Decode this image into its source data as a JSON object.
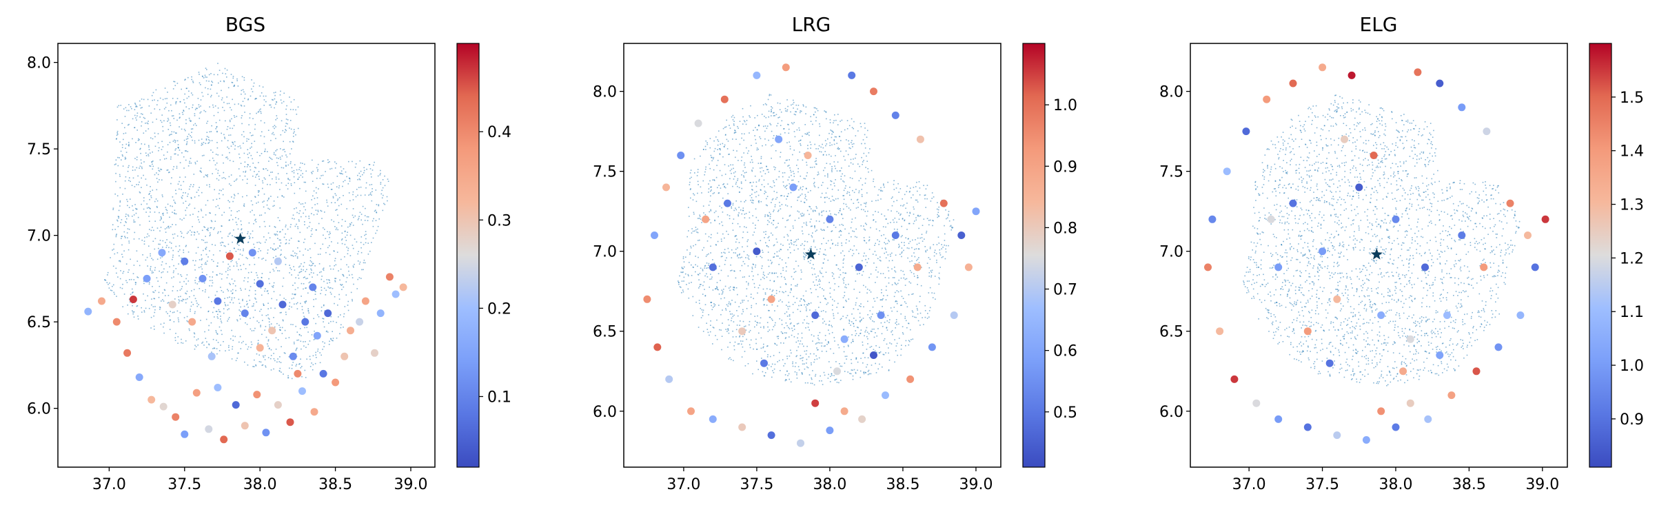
{
  "chart_data": [
    {
      "type": "scatter",
      "title": "BGS",
      "xlim": [
        36.66,
        39.16
      ],
      "ylim": [
        5.66,
        8.11
      ],
      "xticks": [
        "37.0",
        "37.5",
        "38.0",
        "38.5",
        "39.0"
      ],
      "xtick_values": [
        37.0,
        37.5,
        38.0,
        38.5,
        39.0
      ],
      "yticks": [
        "6.0",
        "6.5",
        "7.0",
        "7.5",
        "8.0"
      ],
      "ytick_values": [
        6.0,
        6.5,
        7.0,
        7.5,
        8.0
      ],
      "colorbar": {
        "min": 0.02,
        "max": 0.5,
        "ticks": [
          "0.1",
          "0.2",
          "0.3",
          "0.4"
        ],
        "tick_values": [
          0.1,
          0.2,
          0.3,
          0.4
        ],
        "colormap": "coolwarm"
      },
      "center_marker": {
        "x": 37.87,
        "y": 6.98,
        "shape": "star",
        "color": "#0b3d5c"
      },
      "background_points": {
        "color": "#1f77b4",
        "count_hint": "dense",
        "footprint_polygon": [
          [
            37.0,
            6.8
          ],
          [
            37.05,
            7.75
          ],
          [
            37.3,
            7.85
          ],
          [
            37.72,
            8.0
          ],
          [
            38.25,
            7.8
          ],
          [
            38.25,
            7.44
          ],
          [
            38.75,
            7.44
          ],
          [
            38.88,
            7.3
          ],
          [
            38.55,
            6.45
          ],
          [
            38.3,
            6.15
          ],
          [
            37.9,
            6.25
          ],
          [
            37.5,
            6.35
          ],
          [
            37.1,
            6.55
          ],
          [
            36.95,
            6.75
          ]
        ]
      },
      "galaxies": {
        "marker_size": "small-circle",
        "points": [
          [
            36.86,
            6.56,
            0.18
          ],
          [
            36.95,
            6.62,
            0.35
          ],
          [
            37.05,
            6.5,
            0.4
          ],
          [
            37.12,
            6.32,
            0.42
          ],
          [
            37.16,
            6.63,
            0.47
          ],
          [
            37.2,
            6.18,
            0.16
          ],
          [
            37.28,
            6.05,
            0.32
          ],
          [
            37.36,
            6.01,
            0.27
          ],
          [
            37.44,
            5.95,
            0.41
          ],
          [
            37.5,
            5.85,
            0.14
          ],
          [
            37.58,
            6.09,
            0.37
          ],
          [
            37.66,
            5.88,
            0.25
          ],
          [
            37.72,
            6.12,
            0.2
          ],
          [
            37.76,
            5.82,
            0.44
          ],
          [
            37.84,
            6.02,
            0.06
          ],
          [
            37.9,
            5.9,
            0.3
          ],
          [
            37.98,
            6.08,
            0.39
          ],
          [
            38.04,
            5.86,
            0.12
          ],
          [
            38.12,
            6.02,
            0.28
          ],
          [
            38.2,
            5.92,
            0.45
          ],
          [
            38.28,
            6.1,
            0.2
          ],
          [
            38.36,
            5.98,
            0.35
          ],
          [
            38.42,
            6.2,
            0.08
          ],
          [
            38.5,
            6.15,
            0.38
          ],
          [
            38.56,
            6.3,
            0.3
          ],
          [
            38.6,
            6.45,
            0.34
          ],
          [
            38.66,
            6.5,
            0.24
          ],
          [
            38.7,
            6.62,
            0.36
          ],
          [
            38.76,
            6.32,
            0.28
          ],
          [
            38.8,
            6.55,
            0.18
          ],
          [
            38.86,
            6.76,
            0.41
          ],
          [
            38.9,
            6.66,
            0.2
          ],
          [
            38.95,
            6.7,
            0.32
          ],
          [
            37.35,
            6.9,
            0.16
          ],
          [
            37.5,
            6.85,
            0.09
          ],
          [
            37.62,
            6.75,
            0.12
          ],
          [
            37.72,
            6.62,
            0.08
          ],
          [
            37.8,
            6.88,
            0.45
          ],
          [
            37.9,
            6.55,
            0.1
          ],
          [
            38.0,
            6.72,
            0.07
          ],
          [
            38.08,
            6.45,
            0.3
          ],
          [
            38.15,
            6.6,
            0.06
          ],
          [
            38.22,
            6.3,
            0.11
          ],
          [
            38.3,
            6.5,
            0.08
          ],
          [
            38.38,
            6.42,
            0.15
          ],
          [
            37.42,
            6.6,
            0.28
          ],
          [
            37.55,
            6.5,
            0.35
          ],
          [
            38.12,
            6.85,
            0.22
          ],
          [
            38.35,
            6.7,
            0.1
          ],
          [
            38.45,
            6.55,
            0.06
          ],
          [
            37.25,
            6.75,
            0.14
          ],
          [
            38.0,
            6.35,
            0.33
          ],
          [
            37.68,
            6.3,
            0.21
          ],
          [
            38.25,
            6.2,
            0.4
          ],
          [
            37.95,
            6.9,
            0.12
          ]
        ]
      }
    },
    {
      "type": "scatter",
      "title": "LRG",
      "xlim": [
        36.59,
        39.17
      ],
      "ylim": [
        5.65,
        8.3
      ],
      "xticks": [
        "37.0",
        "37.5",
        "38.0",
        "38.5",
        "39.0"
      ],
      "xtick_values": [
        37.0,
        37.5,
        38.0,
        38.5,
        39.0
      ],
      "yticks": [
        "6.0",
        "6.5",
        "7.0",
        "7.5",
        "8.0"
      ],
      "ytick_values": [
        6.0,
        6.5,
        7.0,
        7.5,
        8.0
      ],
      "colorbar": {
        "min": 0.41,
        "max": 1.1,
        "ticks": [
          "0.5",
          "0.6",
          "0.7",
          "0.8",
          "0.9",
          "1.0"
        ],
        "tick_values": [
          0.5,
          0.6,
          0.7,
          0.8,
          0.9,
          1.0
        ],
        "colormap": "coolwarm"
      },
      "center_marker": {
        "x": 37.87,
        "y": 6.98,
        "shape": "star",
        "color": "#0b3d5c"
      },
      "background_points": {
        "color": "#1f77b4",
        "count_hint": "dense",
        "footprint_polygon": [
          [
            37.0,
            7.0
          ],
          [
            37.05,
            7.6
          ],
          [
            37.3,
            7.85
          ],
          [
            37.6,
            8.0
          ],
          [
            38.25,
            7.8
          ],
          [
            38.3,
            7.45
          ],
          [
            38.7,
            7.44
          ],
          [
            38.85,
            7.2
          ],
          [
            38.7,
            6.6
          ],
          [
            38.4,
            6.25
          ],
          [
            37.9,
            6.15
          ],
          [
            37.4,
            6.25
          ],
          [
            37.1,
            6.5
          ],
          [
            36.95,
            6.8
          ]
        ]
      },
      "galaxies": {
        "marker_size": "small-circle",
        "points": [
          [
            36.75,
            6.7,
            0.95
          ],
          [
            36.8,
            7.1,
            0.6
          ],
          [
            36.82,
            6.4,
            1.02
          ],
          [
            36.88,
            7.4,
            0.85
          ],
          [
            36.9,
            6.2,
            0.7
          ],
          [
            36.98,
            7.6,
            0.55
          ],
          [
            37.05,
            6.0,
            0.9
          ],
          [
            37.1,
            7.8,
            0.75
          ],
          [
            37.2,
            5.95,
            0.62
          ],
          [
            37.28,
            7.95,
            1.0
          ],
          [
            37.4,
            5.9,
            0.8
          ],
          [
            37.5,
            8.1,
            0.65
          ],
          [
            37.6,
            5.85,
            0.48
          ],
          [
            37.7,
            8.15,
            0.92
          ],
          [
            37.8,
            5.8,
            0.72
          ],
          [
            37.9,
            6.05,
            1.05
          ],
          [
            38.0,
            5.88,
            0.58
          ],
          [
            38.1,
            6.0,
            0.88
          ],
          [
            38.15,
            8.1,
            0.5
          ],
          [
            38.22,
            5.95,
            0.78
          ],
          [
            38.3,
            8.0,
            0.98
          ],
          [
            38.38,
            6.1,
            0.66
          ],
          [
            38.45,
            7.85,
            0.52
          ],
          [
            38.55,
            6.2,
            0.94
          ],
          [
            38.62,
            7.7,
            0.82
          ],
          [
            38.7,
            6.4,
            0.56
          ],
          [
            38.78,
            7.3,
            1.0
          ],
          [
            38.85,
            6.6,
            0.7
          ],
          [
            38.9,
            7.1,
            0.45
          ],
          [
            38.95,
            6.9,
            0.86
          ],
          [
            39.0,
            7.25,
            0.6
          ],
          [
            37.3,
            7.3,
            0.5
          ],
          [
            37.5,
            7.0,
            0.44
          ],
          [
            37.6,
            6.7,
            0.9
          ],
          [
            37.75,
            7.4,
            0.58
          ],
          [
            37.9,
            6.6,
            0.47
          ],
          [
            38.0,
            7.2,
            0.52
          ],
          [
            38.1,
            6.45,
            0.62
          ],
          [
            38.2,
            6.9,
            0.46
          ],
          [
            38.35,
            6.6,
            0.55
          ],
          [
            37.4,
            6.5,
            0.8
          ],
          [
            37.2,
            6.9,
            0.48
          ],
          [
            38.45,
            7.1,
            0.5
          ],
          [
            37.65,
            7.7,
            0.6
          ],
          [
            38.05,
            6.25,
            0.75
          ],
          [
            37.55,
            6.3,
            0.5
          ],
          [
            37.85,
            7.6,
            0.85
          ],
          [
            38.3,
            6.35,
            0.43
          ],
          [
            37.15,
            7.2,
            0.9
          ],
          [
            38.6,
            6.9,
            0.88
          ]
        ]
      }
    },
    {
      "type": "scatter",
      "title": "ELG",
      "xlim": [
        36.6,
        39.17
      ],
      "ylim": [
        5.65,
        8.3
      ],
      "xticks": [
        "37.0",
        "37.5",
        "38.0",
        "38.5",
        "39.0"
      ],
      "xtick_values": [
        37.0,
        37.5,
        38.0,
        38.5,
        39.0
      ],
      "yticks": [
        "6.0",
        "6.5",
        "7.0",
        "7.5",
        "8.0"
      ],
      "ytick_values": [
        6.0,
        6.5,
        7.0,
        7.5,
        8.0
      ],
      "colorbar": {
        "min": 0.81,
        "max": 1.6,
        "ticks": [
          "0.9",
          "1.0",
          "1.1",
          "1.2",
          "1.3",
          "1.4",
          "1.5"
        ],
        "tick_values": [
          0.9,
          1.0,
          1.1,
          1.2,
          1.3,
          1.4,
          1.5
        ],
        "colormap": "coolwarm"
      },
      "center_marker": {
        "x": 37.87,
        "y": 6.98,
        "shape": "star",
        "color": "#0b3d5c"
      },
      "background_points": {
        "color": "#1f77b4",
        "count_hint": "dense",
        "footprint_polygon": [
          [
            37.0,
            7.0
          ],
          [
            37.05,
            7.6
          ],
          [
            37.3,
            7.85
          ],
          [
            37.6,
            8.0
          ],
          [
            38.25,
            7.8
          ],
          [
            38.3,
            7.45
          ],
          [
            38.7,
            7.44
          ],
          [
            38.85,
            7.2
          ],
          [
            38.7,
            6.6
          ],
          [
            38.4,
            6.25
          ],
          [
            37.9,
            6.15
          ],
          [
            37.4,
            6.25
          ],
          [
            37.1,
            6.5
          ],
          [
            36.95,
            6.8
          ]
        ]
      },
      "galaxies": {
        "marker_size": "small-circle",
        "points": [
          [
            36.72,
            6.9,
            1.45
          ],
          [
            36.75,
            7.2,
            0.95
          ],
          [
            36.8,
            6.5,
            1.3
          ],
          [
            36.85,
            7.5,
            1.1
          ],
          [
            36.9,
            6.2,
            1.55
          ],
          [
            36.98,
            7.75,
            0.88
          ],
          [
            37.05,
            6.05,
            1.2
          ],
          [
            37.12,
            7.95,
            1.4
          ],
          [
            37.2,
            5.95,
            1.0
          ],
          [
            37.3,
            8.05,
            1.5
          ],
          [
            37.4,
            5.9,
            0.9
          ],
          [
            37.5,
            8.15,
            1.35
          ],
          [
            37.6,
            5.85,
            1.15
          ],
          [
            37.7,
            8.1,
            1.58
          ],
          [
            37.8,
            5.82,
            1.05
          ],
          [
            37.9,
            6.0,
            1.42
          ],
          [
            38.0,
            5.9,
            0.92
          ],
          [
            38.1,
            6.05,
            1.25
          ],
          [
            38.15,
            8.12,
            1.48
          ],
          [
            38.22,
            5.95,
            1.12
          ],
          [
            38.3,
            8.05,
            0.85
          ],
          [
            38.38,
            6.1,
            1.38
          ],
          [
            38.45,
            7.9,
            1.0
          ],
          [
            38.55,
            6.25,
            1.52
          ],
          [
            38.62,
            7.75,
            1.18
          ],
          [
            38.7,
            6.4,
            0.98
          ],
          [
            38.78,
            7.3,
            1.45
          ],
          [
            38.85,
            6.6,
            1.08
          ],
          [
            38.9,
            7.1,
            1.3
          ],
          [
            38.95,
            6.9,
            0.9
          ],
          [
            39.02,
            7.2,
            1.55
          ],
          [
            37.3,
            7.3,
            0.9
          ],
          [
            37.5,
            7.0,
            1.0
          ],
          [
            37.6,
            6.7,
            1.3
          ],
          [
            37.75,
            7.4,
            0.85
          ],
          [
            37.9,
            6.6,
            1.05
          ],
          [
            38.0,
            7.2,
            0.95
          ],
          [
            38.1,
            6.45,
            1.2
          ],
          [
            38.2,
            6.9,
            0.88
          ],
          [
            38.35,
            6.6,
            1.1
          ],
          [
            37.4,
            6.5,
            1.4
          ],
          [
            37.2,
            6.9,
            1.0
          ],
          [
            38.45,
            7.1,
            0.92
          ],
          [
            37.65,
            7.7,
            1.25
          ],
          [
            38.05,
            6.25,
            1.35
          ],
          [
            37.55,
            6.3,
            0.9
          ],
          [
            37.85,
            7.6,
            1.5
          ],
          [
            38.3,
            6.35,
            1.02
          ],
          [
            37.15,
            7.2,
            1.2
          ],
          [
            38.6,
            6.9,
            1.4
          ]
        ]
      }
    }
  ]
}
